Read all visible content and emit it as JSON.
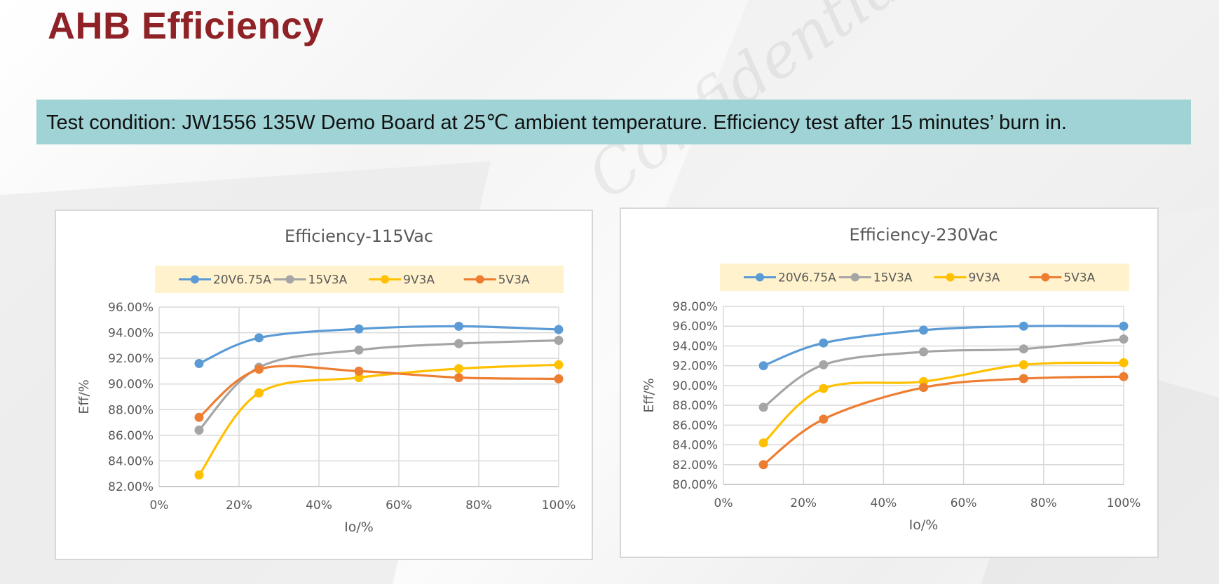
{
  "page": {
    "title": "AHB Efficiency",
    "test_condition": "Test condition: JW1556 135W Demo Board at 25℃ ambient temperature. Efficiency test after 15 minutes’ burn in."
  },
  "chart_data": [
    {
      "type": "line",
      "title": "Efficiency-115Vac",
      "xlabel": "Io/%",
      "ylabel": "Eff/%",
      "xlim": [
        0,
        100
      ],
      "ylim": [
        82,
        96
      ],
      "x_ticks": [
        "0%",
        "20%",
        "40%",
        "60%",
        "80%",
        "100%"
      ],
      "y_ticks": [
        "82.00%",
        "84.00%",
        "86.00%",
        "88.00%",
        "90.00%",
        "92.00%",
        "94.00%",
        "96.00%"
      ],
      "grid": true,
      "legend": "top",
      "x": [
        10,
        25,
        50,
        75,
        100
      ],
      "series": [
        {
          "name": "20V6.75A",
          "color": "#5b9bd5",
          "values": [
            91.6,
            93.6,
            94.3,
            94.5,
            94.25
          ]
        },
        {
          "name": "15V3A",
          "color": "#a5a5a5",
          "values": [
            86.4,
            91.3,
            92.65,
            93.15,
            93.4
          ]
        },
        {
          "name": "9V3A",
          "color": "#ffc000",
          "values": [
            82.9,
            89.3,
            90.5,
            91.2,
            91.5
          ]
        },
        {
          "name": "5V3A",
          "color": "#ed7d31",
          "values": [
            87.4,
            91.15,
            91.0,
            90.5,
            90.4
          ]
        }
      ]
    },
    {
      "type": "line",
      "title": "Efficiency-230Vac",
      "xlabel": "Io/%",
      "ylabel": "Eff/%",
      "xlim": [
        0,
        100
      ],
      "ylim": [
        80,
        98
      ],
      "x_ticks": [
        "0%",
        "20%",
        "40%",
        "60%",
        "80%",
        "100%"
      ],
      "y_ticks": [
        "80.00%",
        "82.00%",
        "84.00%",
        "86.00%",
        "88.00%",
        "90.00%",
        "92.00%",
        "94.00%",
        "96.00%",
        "98.00%"
      ],
      "grid": true,
      "legend": "top",
      "x": [
        10,
        25,
        50,
        75,
        100
      ],
      "series": [
        {
          "name": "20V6.75A",
          "color": "#5b9bd5",
          "values": [
            92.0,
            94.3,
            95.6,
            96.0,
            96.0
          ]
        },
        {
          "name": "15V3A",
          "color": "#a5a5a5",
          "values": [
            87.8,
            92.1,
            93.4,
            93.7,
            94.7
          ]
        },
        {
          "name": "9V3A",
          "color": "#ffc000",
          "values": [
            84.2,
            89.7,
            90.4,
            92.1,
            92.3
          ]
        },
        {
          "name": "5V3A",
          "color": "#ed7d31",
          "values": [
            82.0,
            86.6,
            89.8,
            90.7,
            90.9
          ]
        }
      ]
    }
  ]
}
